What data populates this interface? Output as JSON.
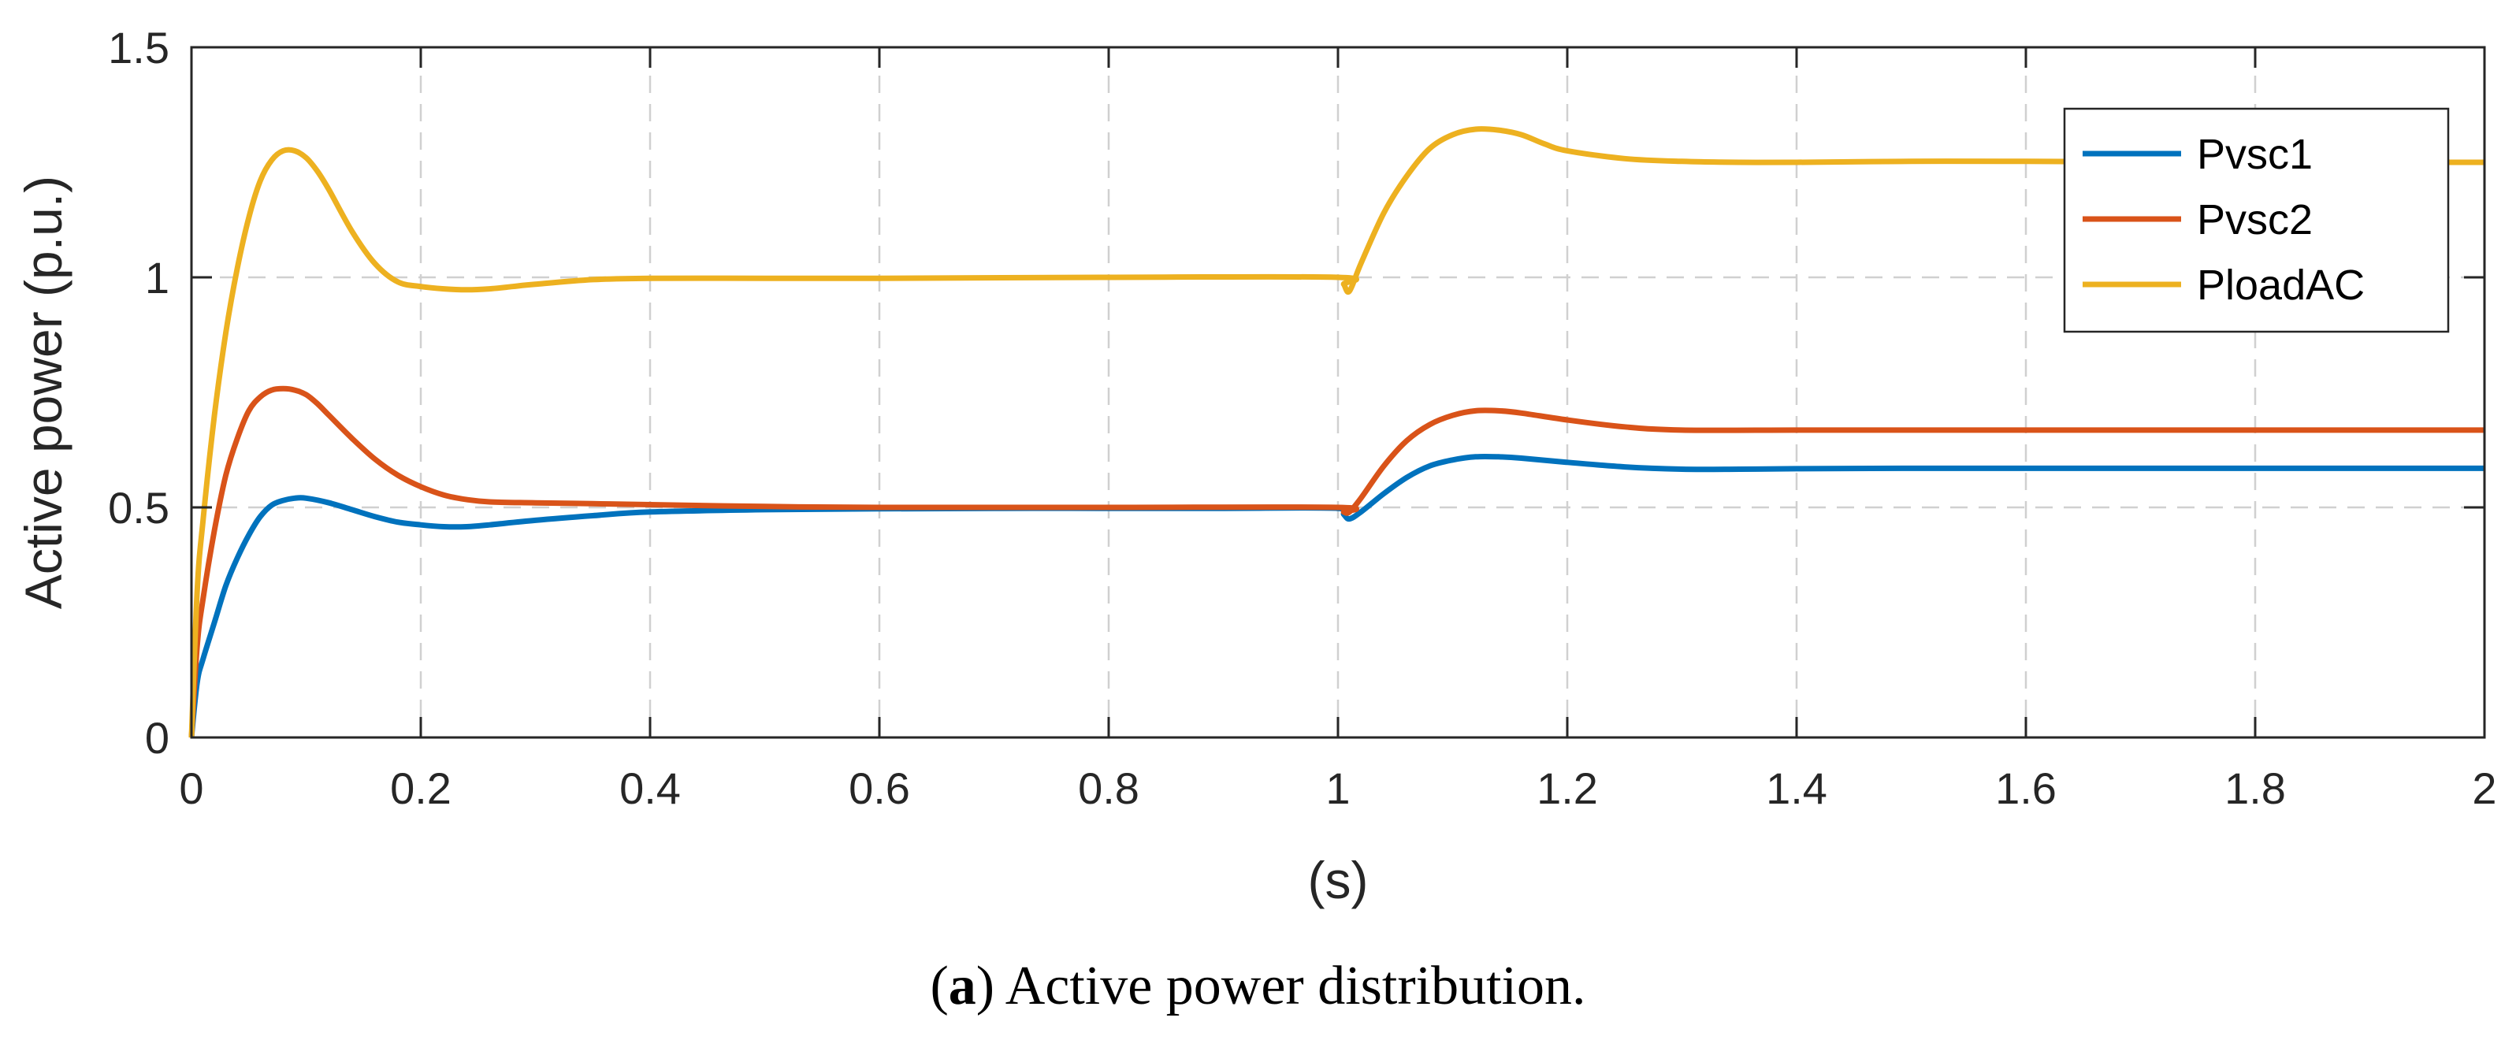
{
  "chart_data": {
    "type": "line",
    "title": "",
    "xlabel": "(s)",
    "ylabel": "Active power (p.u.)",
    "xlim": [
      0,
      2
    ],
    "ylim": [
      0,
      1.5
    ],
    "xticks": [
      0,
      0.2,
      0.4,
      0.6,
      0.8,
      1,
      1.2,
      1.4,
      1.6,
      1.8,
      2
    ],
    "xtick_labels": [
      "0",
      "0.2",
      "0.4",
      "0.6",
      "0.8",
      "1",
      "1.2",
      "1.4",
      "1.6",
      "1.8",
      "2"
    ],
    "yticks": [
      0,
      0.5,
      1,
      1.5
    ],
    "ytick_labels": [
      "0",
      "0.5",
      "1",
      "1.5"
    ],
    "grid": true,
    "legend_position": "top-right",
    "series": [
      {
        "name": "Pvsc1",
        "color": "#0072BD",
        "x": [
          0,
          0.005,
          0.01,
          0.02,
          0.03,
          0.04,
          0.05,
          0.06,
          0.07,
          0.08,
          0.09,
          0.1,
          0.12,
          0.14,
          0.16,
          0.18,
          0.2,
          0.22,
          0.24,
          0.26,
          0.3,
          0.35,
          0.4,
          0.5,
          0.6,
          0.7,
          0.8,
          0.9,
          1.0,
          1.005,
          1.01,
          1.02,
          1.04,
          1.06,
          1.08,
          1.1,
          1.12,
          1.14,
          1.16,
          1.2,
          1.25,
          1.3,
          1.35,
          1.4,
          1.5,
          1.6,
          1.8,
          2.0
        ],
        "y": [
          0,
          0.12,
          0.17,
          0.25,
          0.33,
          0.39,
          0.44,
          0.48,
          0.505,
          0.515,
          0.52,
          0.52,
          0.51,
          0.495,
          0.48,
          0.468,
          0.462,
          0.458,
          0.458,
          0.462,
          0.472,
          0.482,
          0.49,
          0.495,
          0.497,
          0.498,
          0.498,
          0.498,
          0.498,
          0.485,
          0.475,
          0.49,
          0.53,
          0.565,
          0.59,
          0.603,
          0.61,
          0.61,
          0.607,
          0.598,
          0.588,
          0.583,
          0.583,
          0.584,
          0.585,
          0.585,
          0.585,
          0.585
        ]
      },
      {
        "name": "Pvsc2",
        "color": "#D95319",
        "x": [
          0,
          0.005,
          0.01,
          0.02,
          0.03,
          0.04,
          0.05,
          0.06,
          0.07,
          0.08,
          0.09,
          0.1,
          0.11,
          0.12,
          0.14,
          0.16,
          0.18,
          0.2,
          0.22,
          0.24,
          0.26,
          0.3,
          0.35,
          0.4,
          0.5,
          0.6,
          0.8,
          1.0,
          1.005,
          1.01,
          1.02,
          1.04,
          1.06,
          1.08,
          1.1,
          1.12,
          1.14,
          1.16,
          1.2,
          1.25,
          1.3,
          1.4,
          1.5,
          1.6,
          1.8,
          2.0
        ],
        "y": [
          0,
          0.2,
          0.3,
          0.45,
          0.57,
          0.65,
          0.71,
          0.74,
          0.755,
          0.758,
          0.755,
          0.745,
          0.725,
          0.7,
          0.65,
          0.605,
          0.57,
          0.545,
          0.527,
          0.517,
          0.512,
          0.51,
          0.508,
          0.506,
          0.502,
          0.5,
          0.5,
          0.5,
          0.49,
          0.49,
          0.52,
          0.59,
          0.645,
          0.68,
          0.7,
          0.71,
          0.71,
          0.705,
          0.69,
          0.675,
          0.668,
          0.668,
          0.668,
          0.668,
          0.668,
          0.668
        ]
      },
      {
        "name": "PloadAC",
        "color": "#EDB120",
        "x": [
          0,
          0.005,
          0.01,
          0.02,
          0.03,
          0.04,
          0.05,
          0.06,
          0.07,
          0.08,
          0.09,
          0.1,
          0.11,
          0.12,
          0.14,
          0.16,
          0.18,
          0.2,
          0.22,
          0.24,
          0.26,
          0.28,
          0.3,
          0.35,
          0.4,
          0.5,
          0.6,
          0.8,
          1.0,
          1.005,
          1.01,
          1.02,
          1.04,
          1.06,
          1.08,
          1.1,
          1.12,
          1.14,
          1.16,
          1.18,
          1.2,
          1.25,
          1.3,
          1.35,
          1.4,
          1.5,
          1.6,
          1.8,
          2.0
        ],
        "y": [
          0,
          0.32,
          0.47,
          0.7,
          0.88,
          1.02,
          1.13,
          1.21,
          1.255,
          1.275,
          1.275,
          1.26,
          1.23,
          1.19,
          1.1,
          1.03,
          0.99,
          0.98,
          0.975,
          0.973,
          0.975,
          0.98,
          0.985,
          0.995,
          0.998,
          0.998,
          0.998,
          1.0,
          1.0,
          0.985,
          0.97,
          1.03,
          1.14,
          1.22,
          1.28,
          1.31,
          1.322,
          1.32,
          1.31,
          1.29,
          1.275,
          1.258,
          1.252,
          1.25,
          1.25,
          1.252,
          1.252,
          1.25,
          1.25
        ]
      }
    ]
  },
  "caption": {
    "label": "a",
    "text": "Active power distribution."
  }
}
